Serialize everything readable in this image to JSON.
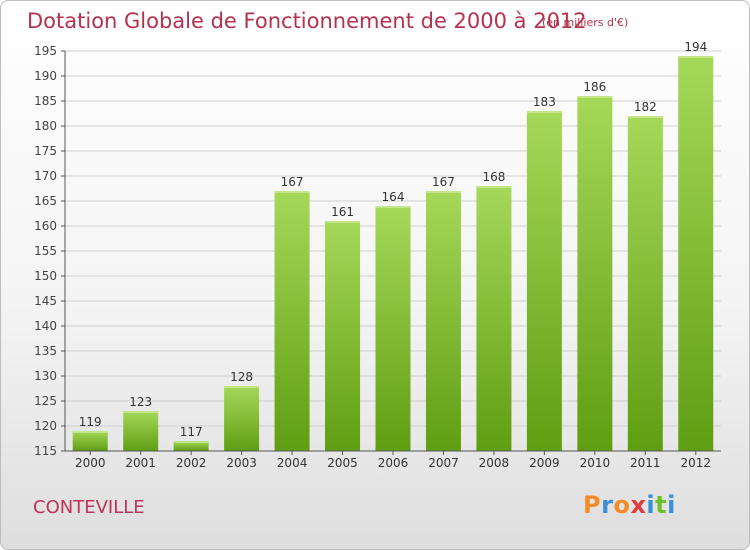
{
  "header": {
    "title": "Dotation Globale de Fonctionnement de 2000 à 2012",
    "subtitle": "(en milliers d'€)"
  },
  "footer": {
    "place": "CONTEVILLE",
    "logo_text": "Proxiti",
    "logo_colors": [
      "#f28c28",
      "#3a8fd6",
      "#f28c28",
      "#e23b3b",
      "#3a8fd6",
      "#6cbf2a",
      "#3a8fd6"
    ]
  },
  "colors": {
    "bar_light": "#a6d85a",
    "bar_dark": "#5f9e12",
    "text": "#b5324e",
    "axis": "#555555",
    "grid": "#cfcfcf"
  },
  "chart_data": {
    "type": "bar",
    "title": "Dotation Globale de Fonctionnement de 2000 à 2012",
    "subtitle": "(en milliers d'€)",
    "categories": [
      "2000",
      "2001",
      "2002",
      "2003",
      "2004",
      "2005",
      "2006",
      "2007",
      "2008",
      "2009",
      "2010",
      "2011",
      "2012"
    ],
    "values": [
      119,
      123,
      117,
      128,
      167,
      161,
      164,
      167,
      168,
      183,
      186,
      182,
      194
    ],
    "ylim": [
      115,
      195
    ],
    "yticks": [
      115,
      120,
      125,
      130,
      135,
      140,
      145,
      150,
      155,
      160,
      165,
      170,
      175,
      180,
      185,
      190,
      195
    ],
    "grid": true,
    "legend": "none"
  }
}
